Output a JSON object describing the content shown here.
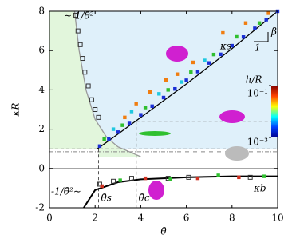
{
  "chart_data": {
    "type": "scatter",
    "xlabel": "θ̄",
    "ylabel": "κR",
    "xlim": [
      0,
      10
    ],
    "ylim": [
      -2,
      8
    ],
    "xticks": [
      0,
      2,
      4,
      6,
      8,
      10
    ],
    "yticks": [
      -2,
      0,
      2,
      4,
      6,
      8
    ],
    "lines": [
      {
        "color": "#000000",
        "x": [
          2.1,
          3,
          4,
          6,
          8,
          10
        ],
        "values": [
          1.0,
          1.75,
          2.6,
          4.3,
          6.1,
          8.0
        ]
      },
      {
        "color": "#000000",
        "x": [
          1.5,
          2,
          3,
          4,
          6,
          8,
          10
        ],
        "values": [
          -2,
          -1.1,
          -0.7,
          -0.55,
          -0.45,
          -0.4,
          -0.4
        ]
      },
      {
        "color": "#999999",
        "x": [
          1.1,
          1.3,
          1.6,
          2,
          2.5,
          3,
          4
        ],
        "values": [
          8,
          6,
          4,
          2.5,
          1.6,
          1.1,
          0.6
        ]
      }
    ],
    "series": [
      {
        "color": "#1a2fd6",
        "x": [
          2.2,
          2.6,
          3,
          3.5,
          4,
          4.5,
          5,
          5.5,
          6,
          6.5,
          7,
          7.5,
          8,
          8.5,
          9,
          9.5,
          10
        ],
        "values": [
          1.14,
          1.5,
          1.85,
          2.29,
          2.73,
          3.17,
          3.61,
          4.05,
          4.49,
          4.93,
          5.37,
          5.81,
          6.25,
          6.69,
          7.13,
          7.57,
          8.0
        ]
      },
      {
        "color": "#2fbf2f",
        "x": [
          2.4,
          3.2,
          4.2,
          5.2,
          6.2,
          7.2,
          8.2,
          9.2
        ],
        "values": [
          1.5,
          2.2,
          3.1,
          4.0,
          4.9,
          5.8,
          6.7,
          7.4
        ]
      },
      {
        "color": "#f07d10",
        "x": [
          3.3,
          3.8,
          4.4,
          5.1,
          5.6,
          6.3,
          7.6,
          8.6,
          9.6
        ],
        "values": [
          2.6,
          3.3,
          3.9,
          4.5,
          4.8,
          5.4,
          6.9,
          7.4,
          7.9
        ]
      },
      {
        "color": "#20c8e0",
        "x": [
          2.8,
          3.6,
          4.8,
          5.8,
          6.8
        ],
        "values": [
          2.0,
          2.9,
          3.8,
          4.4,
          5.5
        ]
      },
      {
        "color": "#d03020",
        "x": [
          2.3,
          4.2,
          6.5,
          8.3
        ],
        "values": [
          -0.9,
          -0.5,
          -0.5,
          -0.45
        ]
      },
      {
        "color": "#2fbf2f",
        "x": [
          3.1,
          5.3,
          7.4,
          9.4
        ],
        "values": [
          -0.6,
          -0.55,
          -0.35,
          -0.4
        ]
      }
    ],
    "open_series": [
      {
        "color": "#333333",
        "x": [
          1.15,
          1.25,
          1.35,
          1.45,
          1.55,
          1.7,
          1.85,
          2.0,
          2.15
        ],
        "values": [
          7.8,
          7.0,
          6.3,
          5.6,
          4.9,
          4.2,
          3.5,
          3.0,
          2.6
        ]
      },
      {
        "color": "#333333",
        "x": [
          2.2,
          2.8,
          3.6,
          5.2,
          6.1,
          8.8
        ],
        "values": [
          -0.8,
          -0.65,
          -0.5,
          -0.5,
          -0.45,
          -0.45
        ]
      }
    ],
    "reference_lines": [
      2.4,
      1.0,
      0.85
    ],
    "thresholds": [
      {
        "value": 2.15,
        "label": "θ̄s"
      },
      {
        "value": 3.8,
        "label": "θ̄c"
      }
    ],
    "annotations": [
      "∼ 1/θ̄²",
      "-1/θ̄²∼",
      "κs",
      "κb",
      "β",
      "1"
    ],
    "colorbar": {
      "label": "h/R",
      "lim": [
        0.001,
        0.1
      ],
      "ticks": [
        {
          "value": 0.1,
          "label": "10⁻¹"
        },
        {
          "value": 0.001,
          "label": "10⁻³"
        }
      ]
    }
  }
}
